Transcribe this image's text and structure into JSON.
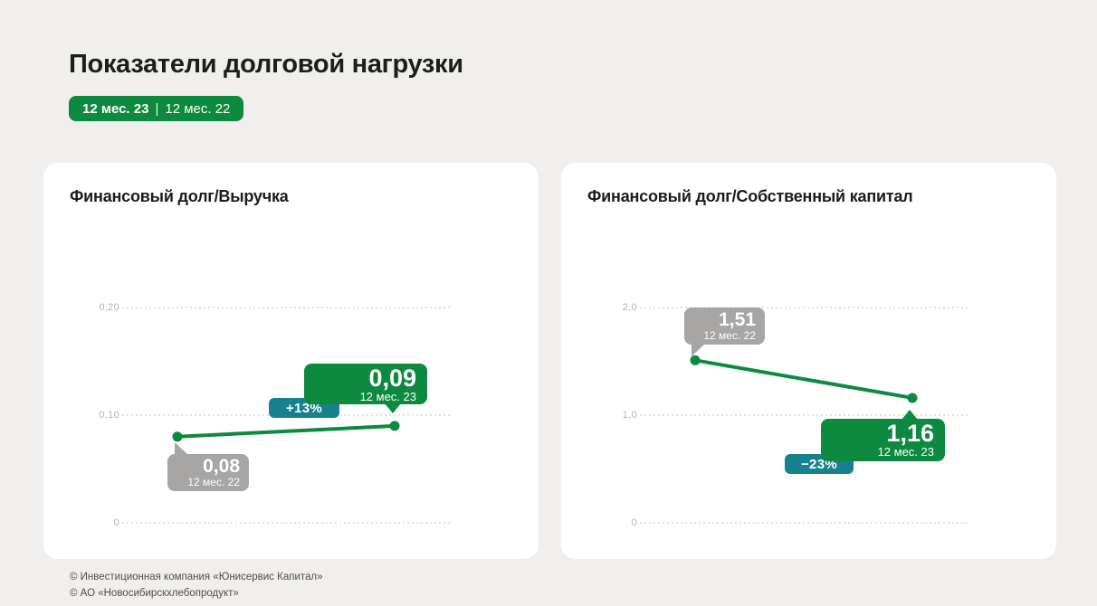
{
  "header": {
    "title": "Показатели долговой нагрузки",
    "badge": {
      "current": "12 мес. 23",
      "separator": "|",
      "previous": "12 мес. 22"
    }
  },
  "chart_data": [
    {
      "type": "line",
      "title": "Финансовый долг/Выручка",
      "x": [
        "12 мес. 22",
        "12 мес. 23"
      ],
      "values": [
        0.08,
        0.09
      ],
      "ylim": [
        0,
        0.2
      ],
      "grid": "dotted-horizontal",
      "gridlines": [
        {
          "value": 0.2,
          "label": "0,20"
        },
        {
          "value": 0.1,
          "label": "0,10"
        },
        {
          "value": 0,
          "label": "0"
        }
      ],
      "callouts": {
        "previous": {
          "value": "0,08",
          "period": "12 мес. 22"
        },
        "current": {
          "value": "0,09",
          "period": "12 мес. 23"
        },
        "change": "+13%"
      }
    },
    {
      "type": "line",
      "title": "Финансовый долг/Собственный капитал",
      "x": [
        "12 мес. 22",
        "12 мес. 23"
      ],
      "values": [
        1.51,
        1.16
      ],
      "ylim": [
        0,
        2.0
      ],
      "grid": "dotted-horizontal",
      "gridlines": [
        {
          "value": 2.0,
          "label": "2,0"
        },
        {
          "value": 1.0,
          "label": "1,0"
        },
        {
          "value": 0,
          "label": "0"
        }
      ],
      "callouts": {
        "previous": {
          "value": "1,51",
          "period": "12 мес. 22"
        },
        "current": {
          "value": "1,16",
          "period": "12 мес. 23"
        },
        "change": "−23%"
      }
    }
  ],
  "footer": {
    "line1": "© Инвестиционная компания «Юнисервис Капитал»",
    "line2": "© АО «Новосибирскхлебопродукт»"
  },
  "colors": {
    "accent_green": "#0d8a3f",
    "accent_teal": "#17818e",
    "neutral_gray": "#a7a6a4",
    "background": "#f0efed"
  }
}
